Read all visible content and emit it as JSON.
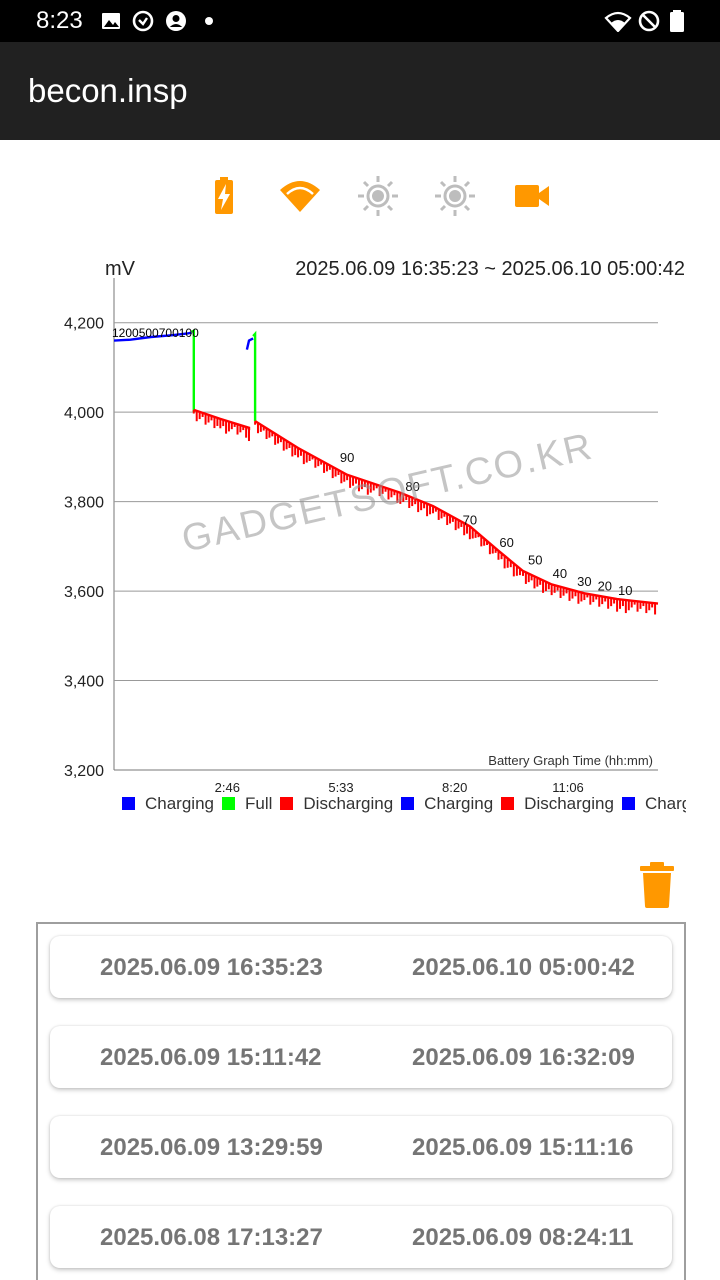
{
  "status_bar": {
    "time": "8:23",
    "left_icons": [
      "image-icon",
      "sync-icon",
      "account-icon",
      "dot-icon"
    ],
    "right_icons": [
      "wifi-icon",
      "do-not-disturb-icon",
      "battery-icon"
    ]
  },
  "app": {
    "title": "becon.insp"
  },
  "toolbar_icons": {
    "battery": "battery-charging-icon",
    "wifi": "wifi-icon",
    "brightness_1": "brightness-icon",
    "brightness_2": "brightness-icon",
    "camera": "video-camera-icon",
    "accent": "#ff9800",
    "inactive": "#bdbdbd"
  },
  "chart_data": {
    "type": "line",
    "ylabel": "mV",
    "time_range": "2025.06.09 16:35:23 ~ 2025.06.10 05:00:42",
    "xlabel": "Battery Graph Time (hh:mm)",
    "ylim": [
      3200,
      4300
    ],
    "yticks": [
      "4,200",
      "4,000",
      "3,800",
      "3,600",
      "3,400",
      "3,200"
    ],
    "ytick_values": [
      4200,
      4000,
      3800,
      3600,
      3400,
      3200
    ],
    "xlim": [
      0,
      13.3
    ],
    "xticks": [
      "2:46",
      "5:33",
      "8:20",
      "11:06"
    ],
    "xtick_values": [
      2.77,
      5.55,
      8.33,
      11.1
    ],
    "grid": true,
    "watermark": "GADGETSOFT.CO.KR",
    "legend": [
      {
        "name": "Charging",
        "color": "#0000ff"
      },
      {
        "name": "Full",
        "color": "#00ff00"
      },
      {
        "name": "Discharging",
        "color": "#ff0000"
      },
      {
        "name": "Charging",
        "color": "#0000ff"
      },
      {
        "name": "Discharging",
        "color": "#ff0000"
      },
      {
        "name": "Charging",
        "color": "#0000ff"
      }
    ],
    "series": [
      {
        "color": "#0000ff",
        "points": [
          [
            0,
            4160
          ],
          [
            0.4,
            4162
          ],
          [
            0.9,
            4168
          ],
          [
            1.4,
            4172
          ],
          [
            1.8,
            4176
          ],
          [
            1.9,
            4178
          ]
        ]
      },
      {
        "color": "#00ff00",
        "points": [
          [
            1.9,
            4180
          ],
          [
            1.95,
            4182
          ],
          [
            1.95,
            4000
          ]
        ]
      },
      {
        "color": "#ff0000",
        "points": [
          [
            1.95,
            4005
          ],
          [
            2.6,
            3985
          ],
          [
            3.3,
            3965
          ],
          [
            3.3,
            3960
          ]
        ]
      },
      {
        "color": "#0000ff",
        "points": [
          [
            3.25,
            4140
          ],
          [
            3.3,
            4160
          ],
          [
            3.4,
            4165
          ]
        ]
      },
      {
        "color": "#00ff00",
        "points": [
          [
            3.4,
            4170
          ],
          [
            3.45,
            4175
          ],
          [
            3.45,
            3980
          ]
        ]
      },
      {
        "color": "#ff0000",
        "points": [
          [
            3.45,
            3980
          ],
          [
            4.5,
            3920
          ],
          [
            5.7,
            3860
          ],
          [
            7.0,
            3820
          ],
          [
            7.8,
            3790
          ],
          [
            8.7,
            3745
          ],
          [
            9.4,
            3690
          ],
          [
            10.0,
            3645
          ],
          [
            10.7,
            3615
          ],
          [
            11.5,
            3595
          ],
          [
            12.3,
            3582
          ],
          [
            13.3,
            3572
          ]
        ]
      }
    ],
    "level_labels": [
      {
        "text": "90",
        "x": 5.7,
        "y": 3880
      },
      {
        "text": "80",
        "x": 7.3,
        "y": 3815
      },
      {
        "text": "70",
        "x": 8.7,
        "y": 3740
      },
      {
        "text": "60",
        "x": 9.6,
        "y": 3690
      },
      {
        "text": "50",
        "x": 10.3,
        "y": 3650
      },
      {
        "text": "40",
        "x": 10.9,
        "y": 3620
      },
      {
        "text": "30",
        "x": 11.5,
        "y": 3602
      },
      {
        "text": "20",
        "x": 12.0,
        "y": 3592
      },
      {
        "text": "10",
        "x": 12.5,
        "y": 3582
      }
    ],
    "charging_labels_text": "1200500700100"
  },
  "sessions": [
    {
      "start": "2025.06.09 16:35:23",
      "end": "2025.06.10 05:00:42"
    },
    {
      "start": "2025.06.09 15:11:42",
      "end": "2025.06.09 16:32:09"
    },
    {
      "start": "2025.06.09 13:29:59",
      "end": "2025.06.09 15:11:16"
    },
    {
      "start": "2025.06.08 17:13:27",
      "end": "2025.06.09 08:24:11"
    }
  ]
}
